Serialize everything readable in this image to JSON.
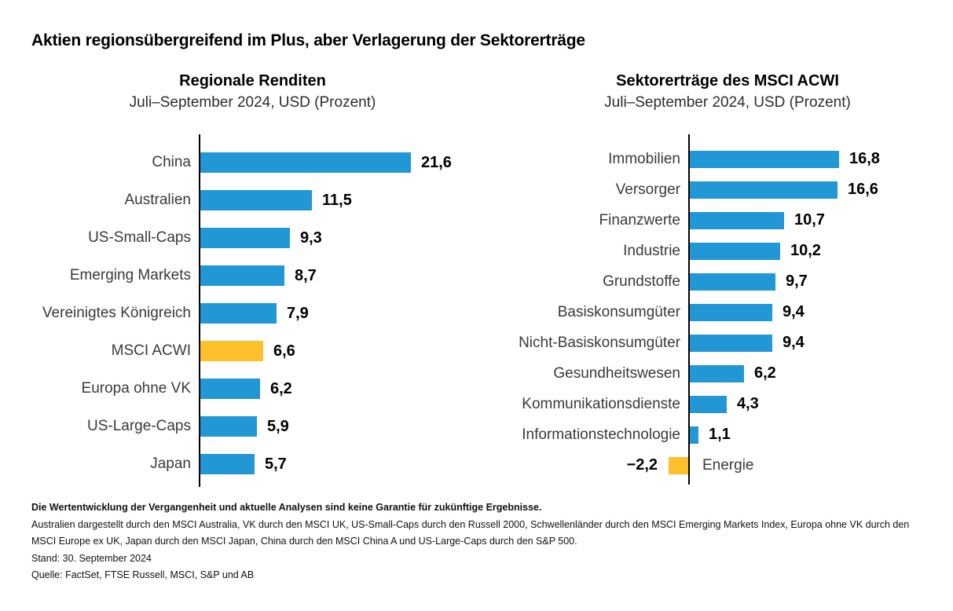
{
  "page_title": "Aktien regionsübergreifend im Plus, aber Verlagerung der Sektorerträge",
  "colors": {
    "bar_blue": "#2198D5",
    "bar_highlight_yellow": "#FEC02B",
    "axis_black": "#000000"
  },
  "chart_data": [
    {
      "type": "bar",
      "orientation": "horizontal",
      "title": "Regionale Renditen",
      "subtitle": "Juli–September 2024, USD (Prozent)",
      "categories": [
        "China",
        "Australien",
        "US-Small-Caps",
        "Emerging Markets",
        "Vereinigtes Königreich",
        "MSCI ACWI",
        "Europa ohne VK",
        "US-Large-Caps",
        "Japan"
      ],
      "values": [
        21.6,
        11.5,
        9.3,
        8.7,
        7.9,
        6.6,
        6.2,
        5.9,
        5.7
      ],
      "value_labels": [
        "21,6",
        "11,5",
        "9,3",
        "8,7",
        "7,9",
        "6,6",
        "6,2",
        "5,9",
        "5,7"
      ],
      "bar_color": "#2198D5",
      "highlight": {
        "index": 5,
        "category": "MSCI ACWI",
        "color": "#FEC02B"
      },
      "xlim": [
        0,
        22
      ],
      "grid": false,
      "legend": false,
      "data_labels": true
    },
    {
      "type": "bar",
      "orientation": "horizontal",
      "title": "Sektorerträge des MSCI ACWI",
      "subtitle": "Juli–September 2024, USD (Prozent)",
      "categories": [
        "Immobilien",
        "Versorger",
        "Finanzwerte",
        "Industrie",
        "Grundstoffe",
        "Basiskonsumgüter",
        "Nicht-Basiskonsumgüter",
        "Gesundheitswesen",
        "Kommunikationsdienste",
        "Informationstechnologie",
        "Energie"
      ],
      "values": [
        16.8,
        16.6,
        10.7,
        10.2,
        9.7,
        9.4,
        9.4,
        6.2,
        4.3,
        1.1,
        -2.2
      ],
      "value_labels": [
        "16,8",
        "16,6",
        "10,7",
        "10,2",
        "9,7",
        "9,4",
        "9,4",
        "6,2",
        "4,3",
        "1,1",
        "−2,2"
      ],
      "bar_color": "#2198D5",
      "highlight": {
        "index": 10,
        "category": "Energie",
        "color": "#FEC02B"
      },
      "xlim": [
        -3,
        17
      ],
      "grid": false,
      "legend": false,
      "data_labels": true
    }
  ],
  "footnotes": {
    "disclaimer_bold": "Die Wertentwicklung der Vergangenheit und aktuelle Analysen sind keine Garantie für zukünftige Ergebnisse.",
    "index_definitions": "Australien dargestellt durch den MSCI Australia, VK durch den MSCI UK, US-Small-Caps durch den Russell 2000, Schwellenländer durch den MSCI Emerging Markets Index, Europa ohne VK durch den MSCI Europe ex UK, Japan durch den MSCI Japan, China durch den MSCI China A und US-Large-Caps durch den S&P 500.",
    "as_of": "Stand: 30. September 2024",
    "source": "Quelle: FactSet, FTSE Russell, MSCI, S&P und AB"
  }
}
